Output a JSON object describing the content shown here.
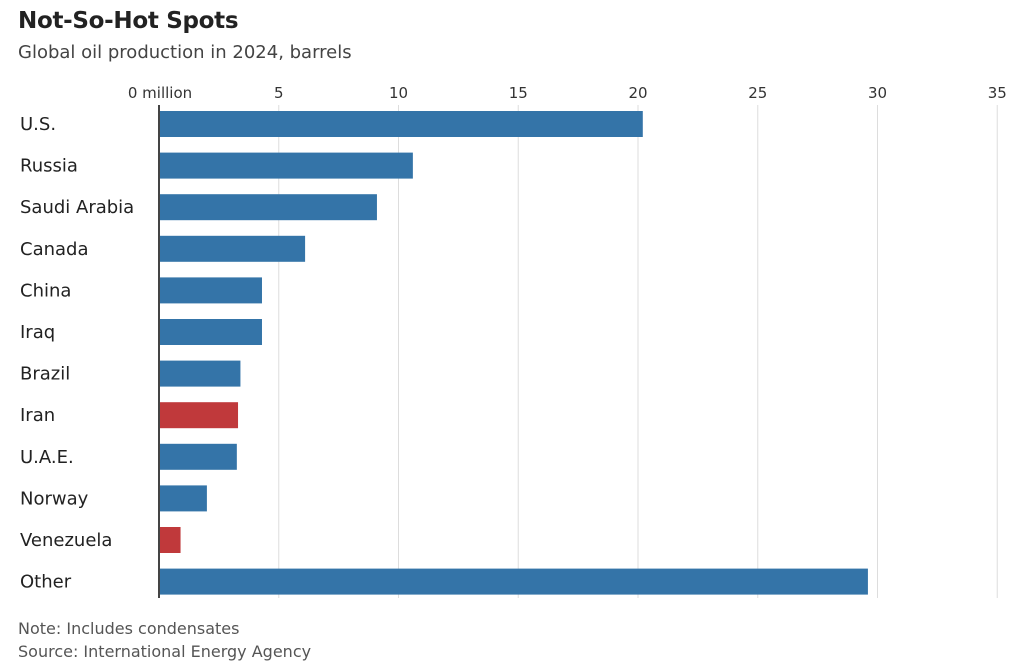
{
  "header": {
    "title": "Not-So-Hot Spots",
    "subtitle": "Global oil production in 2024, barrels"
  },
  "footer": {
    "note": "Note: Includes condensates",
    "source": "Source: International Energy Agency"
  },
  "colors": {
    "default": "#3474a8",
    "highlight": "#c0393b",
    "grid": "#dddddd",
    "axis": "#444444"
  },
  "chart_data": {
    "type": "bar",
    "orientation": "horizontal",
    "title": "Not-So-Hot Spots",
    "subtitle": "Global oil production in 2024, barrels",
    "xlim": [
      0,
      35
    ],
    "ticks": [
      0,
      5,
      10,
      15,
      20,
      25,
      30,
      35
    ],
    "tick_labels": [
      "0 million",
      "5",
      "10",
      "15",
      "20",
      "25",
      "30",
      "35"
    ],
    "grid": true,
    "categories": [
      "U.S.",
      "Russia",
      "Saudi Arabia",
      "Canada",
      "China",
      "Iraq",
      "Brazil",
      "Iran",
      "U.A.E.",
      "Norway",
      "Venezuela",
      "Other"
    ],
    "values": [
      20.2,
      10.6,
      9.1,
      6.1,
      4.3,
      4.3,
      3.4,
      3.3,
      3.25,
      2.0,
      0.9,
      29.6
    ],
    "highlighted": [
      "Iran",
      "Venezuela"
    ]
  }
}
